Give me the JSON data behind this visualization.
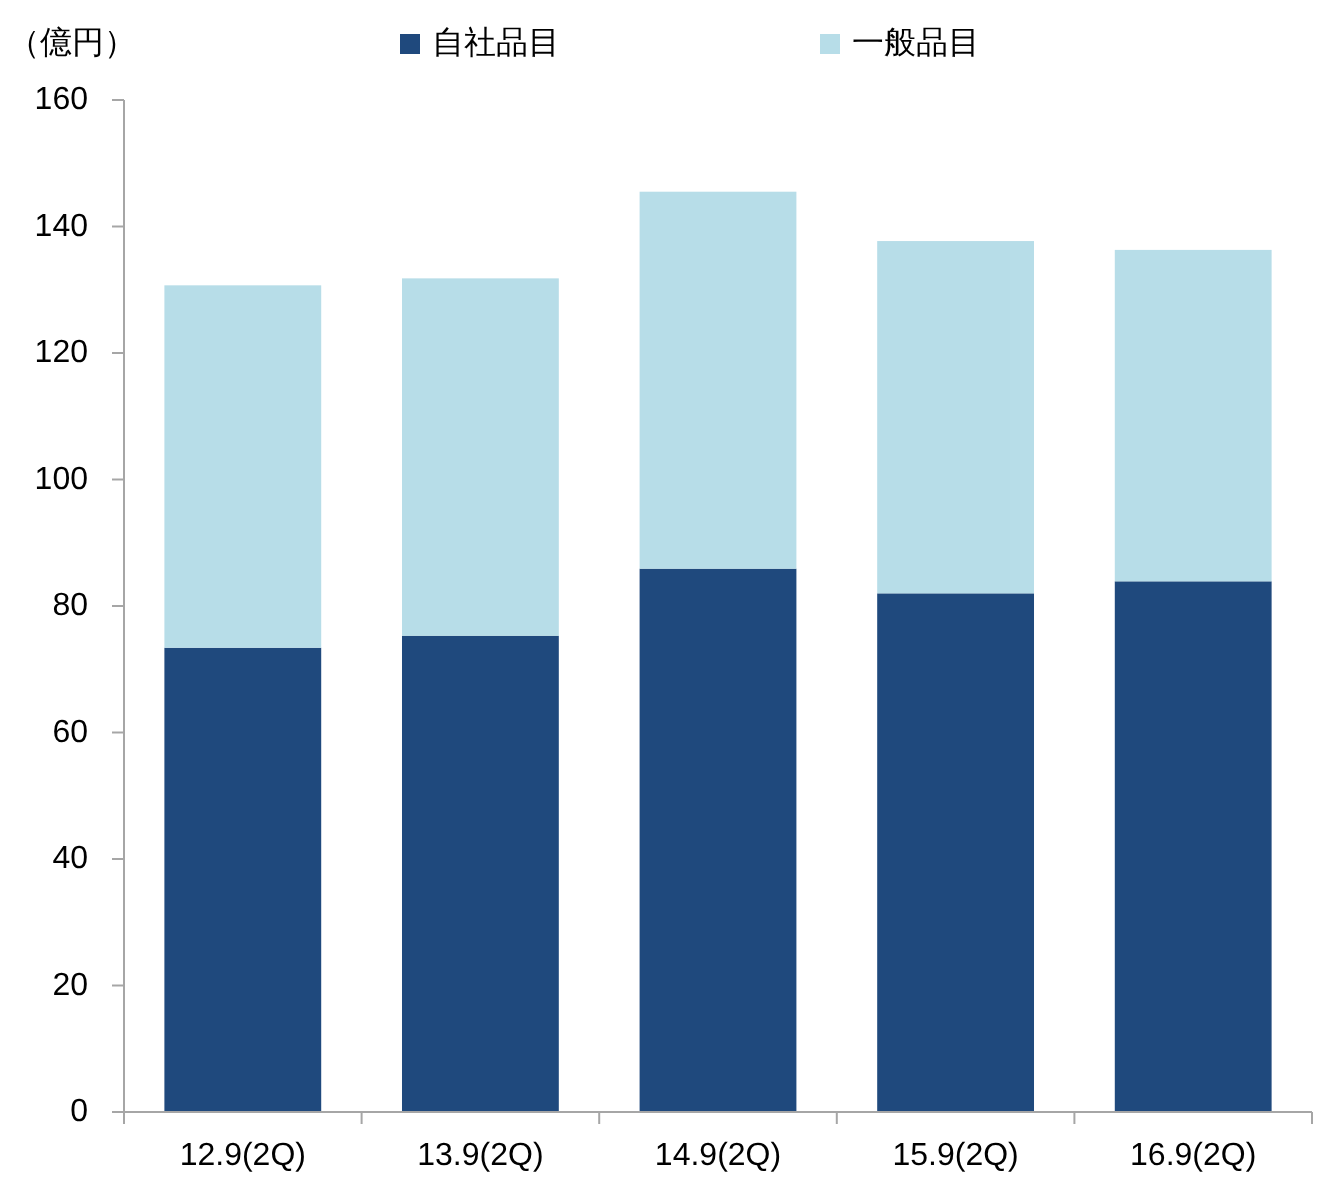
{
  "chart_data": {
    "type": "bar",
    "stacked": true,
    "ylabel": "（億円）",
    "legend": "top",
    "grid": false,
    "categories": [
      "12.9(2Q)",
      "13.9(2Q)",
      "14.9(2Q)",
      "15.9(2Q)",
      "16.9(2Q)"
    ],
    "series": [
      {
        "name": "自社品目",
        "color": "#1f497d",
        "values": [
          73.4,
          75.3,
          85.9,
          82.0,
          83.9
        ]
      },
      {
        "name": "一般品目",
        "color": "#b7dde8",
        "values": [
          57.3,
          56.5,
          59.6,
          55.7,
          52.4
        ]
      }
    ],
    "ylim": [
      0,
      160
    ],
    "yticks": [
      0,
      20,
      40,
      60,
      80,
      100,
      120,
      140,
      160
    ]
  }
}
